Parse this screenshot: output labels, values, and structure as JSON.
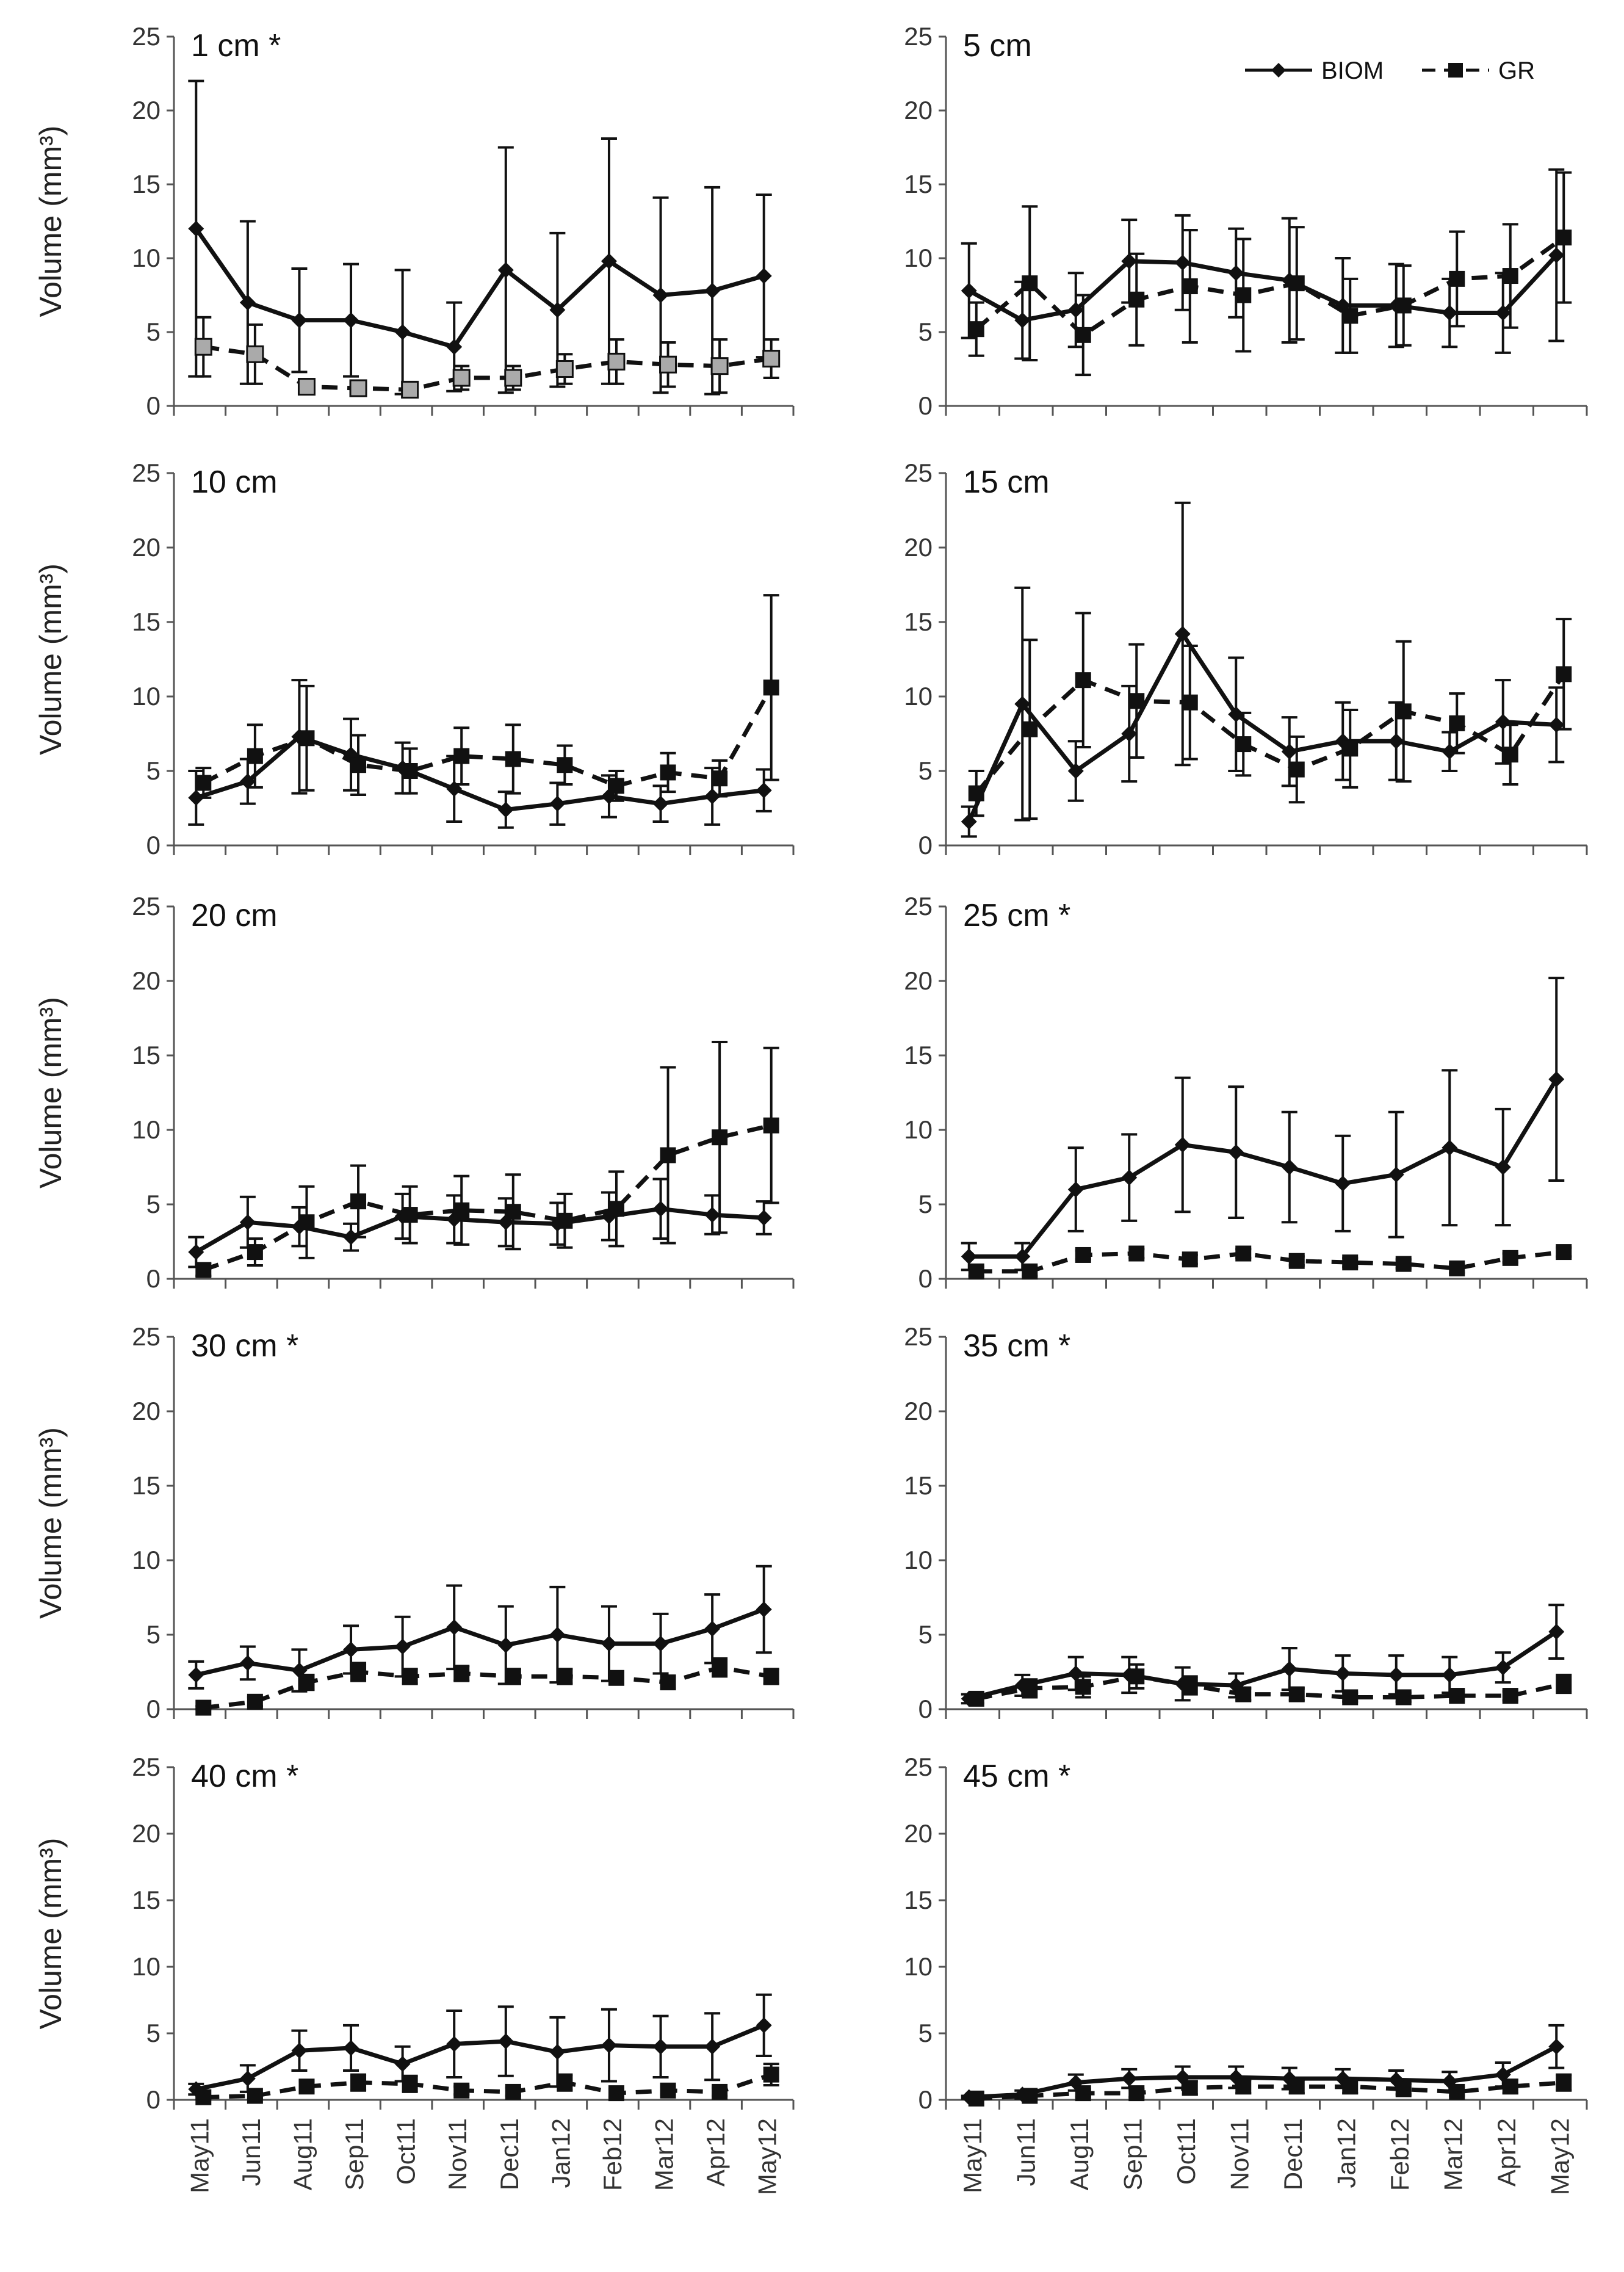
{
  "figure": {
    "series_names": {
      "biom": "BIOM",
      "gr": "GR"
    },
    "y_axis_label": "Volume (mm³)",
    "colors": {
      "line": "#111111",
      "axis": "#555555",
      "gr_marker_row0_left": "#aaaaaa"
    }
  },
  "chart_data": [
    {
      "type": "line",
      "title": "1 cm *",
      "ylabel": "Volume (mm³)",
      "ylim": [
        0,
        25
      ],
      "yticks": [
        0,
        5,
        10,
        15,
        20,
        25
      ],
      "categories": [
        "May11",
        "Jun11",
        "Aug11",
        "Sep11",
        "Oct11",
        "Nov11",
        "Dec11",
        "Jan12",
        "Feb12",
        "Mar12",
        "Apr12",
        "May12"
      ],
      "series": [
        {
          "name": "BIOM",
          "values": [
            12.0,
            7.0,
            5.8,
            5.8,
            5.0,
            4.0,
            9.2,
            6.5,
            9.8,
            7.5,
            7.8,
            8.8
          ],
          "errors": [
            10.0,
            5.5,
            3.5,
            3.8,
            4.2,
            3.0,
            8.3,
            5.2,
            8.3,
            6.6,
            7.0,
            5.5
          ]
        },
        {
          "name": "GR",
          "values": [
            4.0,
            3.5,
            1.3,
            1.2,
            1.1,
            1.9,
            1.9,
            2.5,
            3.0,
            2.8,
            2.7,
            3.2
          ],
          "errors": [
            2.0,
            2.0,
            0.5,
            0.4,
            0.3,
            0.8,
            0.8,
            1.0,
            1.5,
            1.5,
            1.8,
            1.3
          ]
        }
      ]
    },
    {
      "type": "line",
      "title": "5 cm",
      "ylabel": "",
      "ylim": [
        0,
        25
      ],
      "yticks": [
        0,
        5,
        10,
        15,
        20,
        25
      ],
      "categories": [
        "May11",
        "Jun11",
        "Aug11",
        "Sep11",
        "Oct11",
        "Nov11",
        "Dec11",
        "Jan12",
        "Feb12",
        "Mar12",
        "Apr12",
        "May12"
      ],
      "legend": [
        "BIOM",
        "GR"
      ],
      "series": [
        {
          "name": "BIOM",
          "values": [
            7.8,
            5.8,
            6.5,
            9.8,
            9.7,
            9.0,
            8.5,
            6.8,
            6.8,
            6.3,
            6.3,
            10.2
          ],
          "errors": [
            3.2,
            2.6,
            2.5,
            2.8,
            3.2,
            3.0,
            4.2,
            3.2,
            2.8,
            2.3,
            2.7,
            5.8
          ]
        },
        {
          "name": "GR",
          "values": [
            5.2,
            8.3,
            4.8,
            7.2,
            8.1,
            7.5,
            8.3,
            6.1,
            6.8,
            8.6,
            8.8,
            11.4
          ],
          "errors": [
            1.8,
            5.2,
            2.7,
            3.1,
            3.8,
            3.8,
            3.8,
            2.5,
            2.7,
            3.2,
            3.5,
            4.4
          ]
        }
      ]
    },
    {
      "type": "line",
      "title": "10 cm",
      "ylabel": "Volume (mm³)",
      "ylim": [
        0,
        25
      ],
      "yticks": [
        0,
        5,
        10,
        15,
        20,
        25
      ],
      "categories": [
        "May11",
        "Jun11",
        "Aug11",
        "Sep11",
        "Oct11",
        "Nov11",
        "Dec11",
        "Jan12",
        "Feb12",
        "Mar12",
        "Apr12",
        "May12"
      ],
      "series": [
        {
          "name": "BIOM",
          "values": [
            3.2,
            4.3,
            7.3,
            6.1,
            5.2,
            3.8,
            2.4,
            2.8,
            3.3,
            2.8,
            3.3,
            3.7
          ],
          "errors": [
            1.8,
            1.5,
            3.8,
            2.4,
            1.7,
            2.2,
            1.2,
            1.4,
            1.4,
            1.2,
            1.9,
            1.4
          ]
        },
        {
          "name": "GR",
          "values": [
            4.2,
            6.0,
            7.2,
            5.4,
            5.0,
            6.0,
            5.8,
            5.4,
            4.0,
            4.9,
            4.5,
            10.6
          ],
          "errors": [
            1.0,
            2.1,
            3.5,
            2.0,
            1.5,
            1.9,
            2.3,
            1.3,
            1.0,
            1.3,
            1.2,
            6.2
          ]
        }
      ]
    },
    {
      "type": "line",
      "title": "15 cm",
      "ylabel": "",
      "ylim": [
        0,
        25
      ],
      "yticks": [
        0,
        5,
        10,
        15,
        20,
        25
      ],
      "categories": [
        "May11",
        "Jun11",
        "Aug11",
        "Sep11",
        "Oct11",
        "Nov11",
        "Dec11",
        "Jan12",
        "Feb12",
        "Mar12",
        "Apr12",
        "May12"
      ],
      "series": [
        {
          "name": "BIOM",
          "values": [
            1.6,
            9.5,
            5.0,
            7.5,
            14.2,
            8.8,
            6.3,
            7.0,
            7.0,
            6.3,
            8.3,
            8.1
          ],
          "errors": [
            1.0,
            7.8,
            2.0,
            3.2,
            8.8,
            3.8,
            2.3,
            2.6,
            2.6,
            1.3,
            2.8,
            2.5
          ]
        },
        {
          "name": "GR",
          "values": [
            3.5,
            7.8,
            11.1,
            9.7,
            9.6,
            6.8,
            5.1,
            6.5,
            9.0,
            8.2,
            6.1,
            11.5
          ],
          "errors": [
            1.5,
            6.0,
            4.5,
            3.8,
            3.8,
            2.1,
            2.2,
            2.6,
            4.7,
            2.0,
            2.0,
            3.7
          ]
        }
      ]
    },
    {
      "type": "line",
      "title": "20 cm",
      "ylabel": "Volume (mm³)",
      "ylim": [
        0,
        25
      ],
      "yticks": [
        0,
        5,
        10,
        15,
        20,
        25
      ],
      "categories": [
        "May11",
        "Jun11",
        "Aug11",
        "Sep11",
        "Oct11",
        "Nov11",
        "Dec11",
        "Jan12",
        "Feb12",
        "Mar12",
        "Apr12",
        "May12"
      ],
      "series": [
        {
          "name": "BIOM",
          "values": [
            1.8,
            3.8,
            3.5,
            2.8,
            4.2,
            4.0,
            3.8,
            3.7,
            4.2,
            4.7,
            4.3,
            4.1
          ],
          "errors": [
            1.0,
            1.7,
            1.3,
            0.9,
            1.5,
            1.6,
            1.6,
            1.4,
            1.6,
            2.0,
            1.3,
            1.1
          ]
        },
        {
          "name": "GR",
          "values": [
            0.6,
            1.8,
            3.8,
            5.2,
            4.3,
            4.6,
            4.5,
            3.9,
            4.7,
            8.3,
            9.5,
            10.3
          ],
          "errors": [
            0.4,
            0.9,
            2.4,
            2.4,
            1.9,
            2.3,
            2.5,
            1.8,
            2.5,
            5.9,
            6.4,
            5.2
          ]
        }
      ]
    },
    {
      "type": "line",
      "title": "25 cm *",
      "ylabel": "",
      "ylim": [
        0,
        25
      ],
      "yticks": [
        0,
        5,
        10,
        15,
        20,
        25
      ],
      "categories": [
        "May11",
        "Jun11",
        "Aug11",
        "Sep11",
        "Oct11",
        "Nov11",
        "Dec11",
        "Jan12",
        "Feb12",
        "Mar12",
        "Apr12",
        "May12"
      ],
      "series": [
        {
          "name": "BIOM",
          "values": [
            1.5,
            1.5,
            6.0,
            6.8,
            9.0,
            8.5,
            7.5,
            6.4,
            7.0,
            8.8,
            7.5,
            13.4
          ],
          "errors": [
            0.9,
            0.9,
            2.8,
            2.9,
            4.5,
            4.4,
            3.7,
            3.2,
            4.2,
            5.2,
            3.9,
            6.8
          ]
        },
        {
          "name": "GR",
          "values": [
            0.5,
            0.5,
            1.6,
            1.7,
            1.3,
            1.7,
            1.2,
            1.1,
            1.0,
            0.7,
            1.4,
            1.8
          ],
          "errors": [
            0.3,
            0.3,
            0.3,
            0.3,
            0.3,
            0.3,
            0.3,
            0.3,
            0.3,
            0.3,
            0.3,
            0.3
          ]
        }
      ]
    },
    {
      "type": "line",
      "title": "30 cm *",
      "ylabel": "Volume (mm³)",
      "ylim": [
        0,
        25
      ],
      "yticks": [
        0,
        5,
        10,
        15,
        20,
        25
      ],
      "categories": [
        "May11",
        "Jun11",
        "Aug11",
        "Sep11",
        "Oct11",
        "Nov11",
        "Dec11",
        "Jan12",
        "Feb12",
        "Mar12",
        "Apr12",
        "May12"
      ],
      "series": [
        {
          "name": "BIOM",
          "values": [
            2.3,
            3.1,
            2.6,
            4.0,
            4.2,
            5.5,
            4.3,
            5.0,
            4.4,
            4.4,
            5.4,
            6.7
          ],
          "errors": [
            0.9,
            1.1,
            1.4,
            1.6,
            2.0,
            2.8,
            2.6,
            3.2,
            2.5,
            2.0,
            2.3,
            2.9
          ]
        },
        {
          "name": "GR",
          "values": [
            0.1,
            0.5,
            1.8,
            2.5,
            2.2,
            2.4,
            2.2,
            2.2,
            2.1,
            1.8,
            2.8,
            2.2
          ],
          "errors": [
            0.1,
            0.3,
            0.5,
            0.6,
            0.5,
            0.5,
            0.5,
            0.5,
            0.4,
            0.4,
            0.6,
            0.5
          ]
        }
      ]
    },
    {
      "type": "line",
      "title": "35 cm *",
      "ylabel": "",
      "ylim": [
        0,
        25
      ],
      "yticks": [
        0,
        5,
        10,
        15,
        20,
        25
      ],
      "categories": [
        "May11",
        "Jun11",
        "Aug11",
        "Sep11",
        "Oct11",
        "Nov11",
        "Dec11",
        "Jan12",
        "Feb12",
        "Mar12",
        "Apr12",
        "May12"
      ],
      "series": [
        {
          "name": "BIOM",
          "values": [
            0.7,
            1.6,
            2.4,
            2.3,
            1.7,
            1.6,
            2.7,
            2.4,
            2.3,
            2.3,
            2.8,
            5.2
          ],
          "errors": [
            0.3,
            0.7,
            1.1,
            1.2,
            1.1,
            0.8,
            1.4,
            1.2,
            1.3,
            1.2,
            1.0,
            1.8
          ]
        },
        {
          "name": "GR",
          "values": [
            0.7,
            1.4,
            1.5,
            2.2,
            1.6,
            1.0,
            1.0,
            0.8,
            0.8,
            0.9,
            0.9,
            1.7
          ],
          "errors": [
            0.3,
            0.6,
            0.7,
            0.8,
            0.6,
            0.4,
            0.4,
            0.3,
            0.3,
            0.3,
            0.3,
            0.6
          ]
        }
      ]
    },
    {
      "type": "line",
      "title": "40 cm *",
      "ylabel": "Volume (mm³)",
      "ylim": [
        0,
        25
      ],
      "yticks": [
        0,
        5,
        10,
        15,
        20,
        25
      ],
      "categories": [
        "May11",
        "Jun11",
        "Aug11",
        "Sep11",
        "Oct11",
        "Nov11",
        "Dec11",
        "Jan12",
        "Feb12",
        "Mar12",
        "Apr12",
        "May12"
      ],
      "series": [
        {
          "name": "BIOM",
          "values": [
            0.8,
            1.6,
            3.7,
            3.9,
            2.7,
            4.2,
            4.4,
            3.6,
            4.1,
            4.0,
            4.0,
            5.6
          ],
          "errors": [
            0.4,
            1.0,
            1.5,
            1.7,
            1.3,
            2.5,
            2.6,
            2.6,
            2.7,
            2.3,
            2.5,
            2.3
          ]
        },
        {
          "name": "GR",
          "values": [
            0.2,
            0.3,
            1.0,
            1.3,
            1.2,
            0.7,
            0.6,
            1.3,
            0.5,
            0.7,
            0.6,
            1.9
          ],
          "errors": [
            0.1,
            0.2,
            0.4,
            0.6,
            0.6,
            0.3,
            0.3,
            0.6,
            0.3,
            0.3,
            0.3,
            0.8
          ]
        }
      ]
    },
    {
      "type": "line",
      "title": "45 cm *",
      "ylabel": "",
      "ylim": [
        0,
        25
      ],
      "yticks": [
        0,
        5,
        10,
        15,
        20,
        25
      ],
      "categories": [
        "May11",
        "Jun11",
        "Aug11",
        "Sep11",
        "Oct11",
        "Nov11",
        "Dec11",
        "Jan12",
        "Feb12",
        "Mar12",
        "Apr12",
        "May12"
      ],
      "series": [
        {
          "name": "BIOM",
          "values": [
            0.2,
            0.4,
            1.3,
            1.6,
            1.7,
            1.7,
            1.6,
            1.6,
            1.5,
            1.4,
            1.9,
            4.0
          ],
          "errors": [
            0.1,
            0.3,
            0.6,
            0.7,
            0.8,
            0.8,
            0.8,
            0.7,
            0.7,
            0.7,
            0.9,
            1.6
          ]
        },
        {
          "name": "GR",
          "values": [
            0.1,
            0.3,
            0.5,
            0.5,
            0.9,
            1.0,
            1.0,
            1.0,
            0.8,
            0.6,
            1.0,
            1.3
          ],
          "errors": [
            0.1,
            0.2,
            0.3,
            0.3,
            0.5,
            0.5,
            0.5,
            0.5,
            0.4,
            0.3,
            0.5,
            0.6
          ]
        }
      ]
    }
  ]
}
